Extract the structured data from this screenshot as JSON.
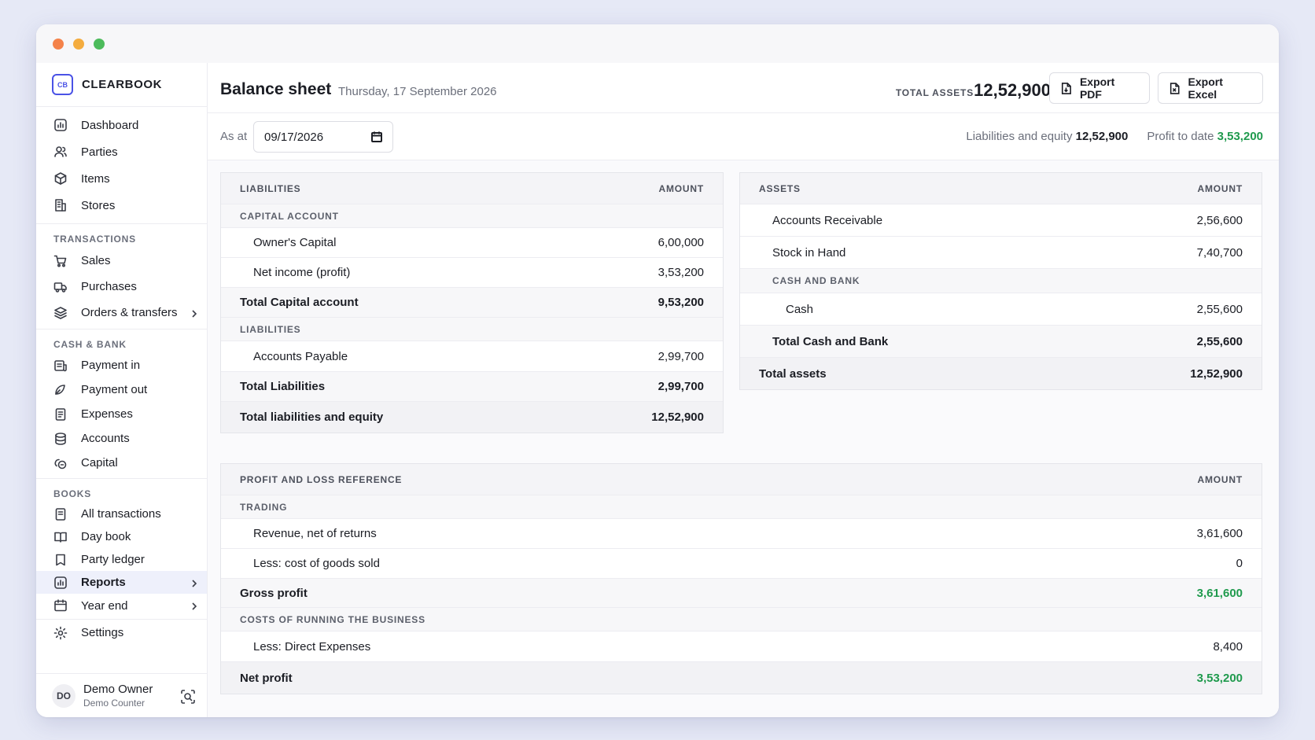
{
  "app": {
    "brand_logo": "CB",
    "brand_name": "CLEARBOOK"
  },
  "sidebar": {
    "top": [
      {
        "label": "Dashboard",
        "icon": "dashboard-icon"
      },
      {
        "label": "Parties",
        "icon": "users-icon"
      },
      {
        "label": "Items",
        "icon": "box-icon"
      },
      {
        "label": "Stores",
        "icon": "building-icon"
      }
    ],
    "transactions_heading": "TRANSACTIONS",
    "transactions": [
      {
        "label": "Sales",
        "icon": "cart-icon"
      },
      {
        "label": "Purchases",
        "icon": "truck-icon"
      },
      {
        "label": "Orders & transfers",
        "icon": "layers-icon"
      }
    ],
    "cash_heading": "CASH & BANK",
    "cash": [
      {
        "label": "Payment in",
        "icon": "payment-in-icon"
      },
      {
        "label": "Payment out",
        "icon": "payment-out-icon"
      },
      {
        "label": "Expenses",
        "icon": "receipt-icon"
      },
      {
        "label": "Accounts",
        "icon": "database-icon"
      },
      {
        "label": "Capital",
        "icon": "coins-icon"
      }
    ],
    "books_heading": "BOOKS",
    "books": [
      {
        "label": "All transactions",
        "icon": "list-icon"
      },
      {
        "label": "Day book",
        "icon": "book-icon"
      },
      {
        "label": "Party ledger",
        "icon": "bookmark-icon"
      },
      {
        "label": "Reports",
        "icon": "chart-icon"
      },
      {
        "label": "Year end",
        "icon": "calendar-icon"
      }
    ],
    "settings": {
      "label": "Settings",
      "icon": "gear-icon"
    },
    "user": {
      "initials": "DO",
      "name": "Demo Owner",
      "role": "Demo Counter"
    }
  },
  "header": {
    "title": "Balance sheet",
    "date": "Thursday, 17 September 2026",
    "total_assets_label": "TOTAL ASSETS",
    "total_assets_value": "12,52,900",
    "export_pdf": "Export PDF",
    "export_excel": "Export Excel"
  },
  "filter": {
    "as_at_label": "As at",
    "date_value": "09/17/2026",
    "liab_equity_label": "Liabilities and equity",
    "liab_equity_value": "12,52,900",
    "profit_label": "Profit to date",
    "profit_value": "3,53,200"
  },
  "liabilities": {
    "heading": "LIABILITIES",
    "amount_heading": "AMOUNT",
    "capital_section": "CAPITAL ACCOUNT",
    "owners_capital": {
      "label": "Owner's Capital",
      "amount": "6,00,000"
    },
    "net_income": {
      "label": "Net income (profit)",
      "amount": "3,53,200"
    },
    "total_capital": {
      "label": "Total Capital account",
      "amount": "9,53,200"
    },
    "liab_section": "LIABILITIES",
    "accounts_payable": {
      "label": "Accounts Payable",
      "amount": "2,99,700"
    },
    "total_liabilities": {
      "label": "Total Liabilities",
      "amount": "2,99,700"
    },
    "total_liab_equity": {
      "label": "Total liabilities and equity",
      "amount": "12,52,900"
    }
  },
  "assets": {
    "heading": "ASSETS",
    "amount_heading": "AMOUNT",
    "receivable": {
      "label": "Accounts Receivable",
      "amount": "2,56,600"
    },
    "stock": {
      "label": "Stock in Hand",
      "amount": "7,40,700"
    },
    "cash_section": "CASH AND BANK",
    "cash": {
      "label": "Cash",
      "amount": "2,55,600"
    },
    "total_cash": {
      "label": "Total Cash and Bank",
      "amount": "2,55,600"
    },
    "total_assets": {
      "label": "Total assets",
      "amount": "12,52,900"
    }
  },
  "pnl": {
    "heading": "PROFIT AND LOSS REFERENCE",
    "amount_heading": "AMOUNT",
    "trading_section": "TRADING",
    "revenue": {
      "label": "Revenue, net of returns",
      "amount": "3,61,600"
    },
    "cogs": {
      "label": "Less: cost of goods sold",
      "amount": "0"
    },
    "gross_profit": {
      "label": "Gross profit",
      "amount": "3,61,600"
    },
    "costs_section": "COSTS OF RUNNING THE BUSINESS",
    "direct_expenses": {
      "label": "Less: Direct Expenses",
      "amount": "8,400"
    },
    "net_profit": {
      "label": "Net profit",
      "amount": "3,53,200"
    }
  },
  "colors": {
    "accent": "#4a52e6",
    "positive": "#1f9a4d"
  }
}
